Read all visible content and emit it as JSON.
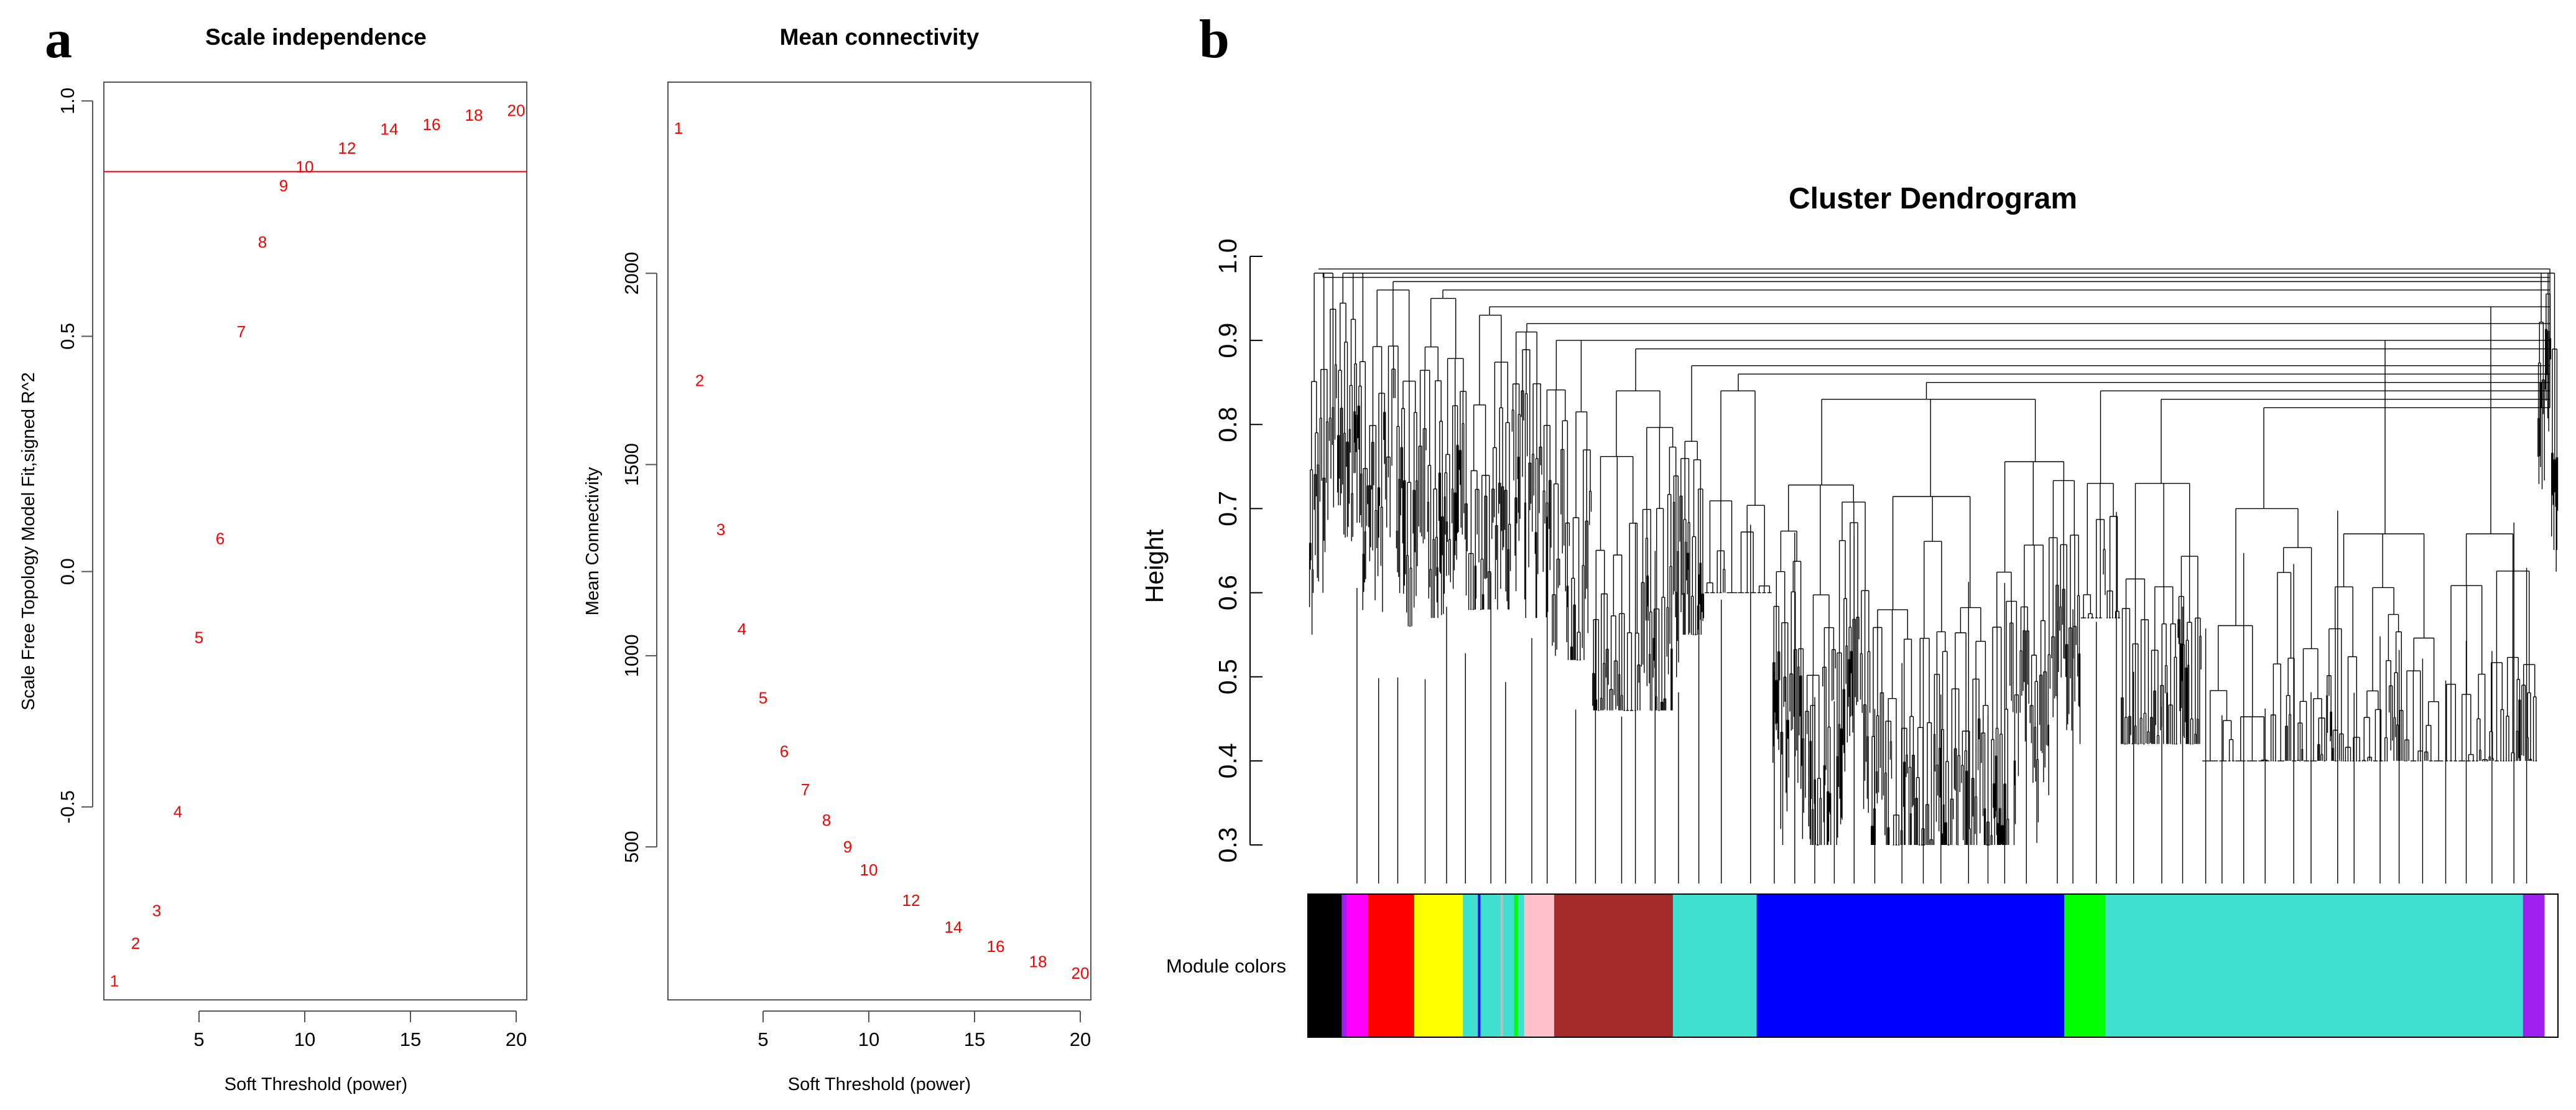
{
  "panel_labels": {
    "a": "a",
    "b": "b"
  },
  "chart_data": [
    {
      "type": "scatter",
      "title": "Scale independence",
      "xlabel": "Soft Threshold (power)",
      "ylabel": "Scale Free Topology Model Fit,signed R^2",
      "xlim": [
        0.5,
        20.5
      ],
      "ylim": [
        -0.91,
        1.04
      ],
      "xticks": [
        5,
        10,
        15,
        20
      ],
      "yticks": [
        -0.5,
        0.0,
        0.5,
        1.0
      ],
      "ytick_labels": [
        "-0.5",
        "0.0",
        "0.5",
        "1.0"
      ],
      "points": [
        {
          "x": 1,
          "y": -0.87,
          "label": "1"
        },
        {
          "x": 2,
          "y": -0.79,
          "label": "2"
        },
        {
          "x": 3,
          "y": -0.72,
          "label": "3"
        },
        {
          "x": 4,
          "y": -0.51,
          "label": "4"
        },
        {
          "x": 5,
          "y": -0.14,
          "label": "5"
        },
        {
          "x": 6,
          "y": 0.07,
          "label": "6"
        },
        {
          "x": 7,
          "y": 0.51,
          "label": "7"
        },
        {
          "x": 8,
          "y": 0.7,
          "label": "8"
        },
        {
          "x": 9,
          "y": 0.82,
          "label": "9"
        },
        {
          "x": 10,
          "y": 0.86,
          "label": "10"
        },
        {
          "x": 12,
          "y": 0.9,
          "label": "12"
        },
        {
          "x": 14,
          "y": 0.94,
          "label": "14"
        },
        {
          "x": 16,
          "y": 0.95,
          "label": "16"
        },
        {
          "x": 18,
          "y": 0.97,
          "label": "18"
        },
        {
          "x": 20,
          "y": 0.98,
          "label": "20"
        }
      ],
      "hline": 0.85,
      "point_color": "#ff0000",
      "line_color": "#ff0000"
    },
    {
      "type": "scatter",
      "title": "Mean connectivity",
      "xlabel": "Soft Threshold (power)",
      "ylabel": "Mean Connectivity",
      "xlim": [
        0.5,
        20.5
      ],
      "ylim": [
        100,
        2500
      ],
      "xticks": [
        5,
        10,
        15,
        20
      ],
      "yticks": [
        500,
        1000,
        1500,
        2000
      ],
      "ytick_labels": [
        "500",
        "1000",
        "1500",
        "2000"
      ],
      "points": [
        {
          "x": 1,
          "y": 2380,
          "label": "1"
        },
        {
          "x": 2,
          "y": 1720,
          "label": "2"
        },
        {
          "x": 3,
          "y": 1330,
          "label": "3"
        },
        {
          "x": 4,
          "y": 1070,
          "label": "4"
        },
        {
          "x": 5,
          "y": 890,
          "label": "5"
        },
        {
          "x": 6,
          "y": 750,
          "label": "6"
        },
        {
          "x": 7,
          "y": 650,
          "label": "7"
        },
        {
          "x": 8,
          "y": 570,
          "label": "8"
        },
        {
          "x": 9,
          "y": 500,
          "label": "9"
        },
        {
          "x": 10,
          "y": 440,
          "label": "10"
        },
        {
          "x": 12,
          "y": 360,
          "label": "12"
        },
        {
          "x": 14,
          "y": 290,
          "label": "14"
        },
        {
          "x": 16,
          "y": 240,
          "label": "16"
        },
        {
          "x": 18,
          "y": 200,
          "label": "18"
        },
        {
          "x": 20,
          "y": 170,
          "label": "20"
        }
      ],
      "point_color": "#ff0000"
    },
    {
      "type": "dendrogram",
      "title": "Cluster Dendrogram",
      "ylabel": "Height",
      "ylim": [
        0.3,
        1.0
      ],
      "yticks": [
        0.3,
        0.4,
        0.5,
        0.6,
        0.7,
        0.8,
        0.9,
        1.0
      ],
      "ytick_labels": [
        "0.3",
        "0.4",
        "0.5",
        "0.6",
        "0.7",
        "0.8",
        "0.9",
        "1.0"
      ],
      "color_bar_label": "Module colors",
      "modules": [
        {
          "name": "black",
          "color": "#000000",
          "fraction": 0.027
        },
        {
          "name": "purple",
          "color": "#a020f0",
          "fraction": 0.004
        },
        {
          "name": "magenta",
          "color": "#ff00ff",
          "fraction": 0.017
        },
        {
          "name": "red",
          "color": "#ff0000",
          "fraction": 0.037
        },
        {
          "name": "yellow",
          "color": "#ffff00",
          "fraction": 0.039
        },
        {
          "name": "turquoise",
          "color": "#40e0d0",
          "fraction": 0.012
        },
        {
          "name": "blue",
          "color": "#0000ff",
          "fraction": 0.002
        },
        {
          "name": "turquoise",
          "color": "#40e0d0",
          "fraction": 0.016
        },
        {
          "name": "grey",
          "color": "#bebebe",
          "fraction": 0.002
        },
        {
          "name": "turquoise",
          "color": "#40e0d0",
          "fraction": 0.009
        },
        {
          "name": "green",
          "color": "#00ff00",
          "fraction": 0.003
        },
        {
          "name": "turquoise",
          "color": "#40e0d0",
          "fraction": 0.005
        },
        {
          "name": "pink",
          "color": "#ffc0cb",
          "fraction": 0.024
        },
        {
          "name": "brown",
          "color": "#a52a2a",
          "fraction": 0.095
        },
        {
          "name": "turquoise",
          "color": "#40e0d0",
          "fraction": 0.067
        },
        {
          "name": "blue",
          "color": "#0000ff",
          "fraction": 0.246
        },
        {
          "name": "green",
          "color": "#00ff00",
          "fraction": 0.033
        },
        {
          "name": "turquoise",
          "color": "#40e0d0",
          "fraction": 0.334
        },
        {
          "name": "purple",
          "color": "#a020f0",
          "fraction": 0.017
        }
      ]
    }
  ]
}
